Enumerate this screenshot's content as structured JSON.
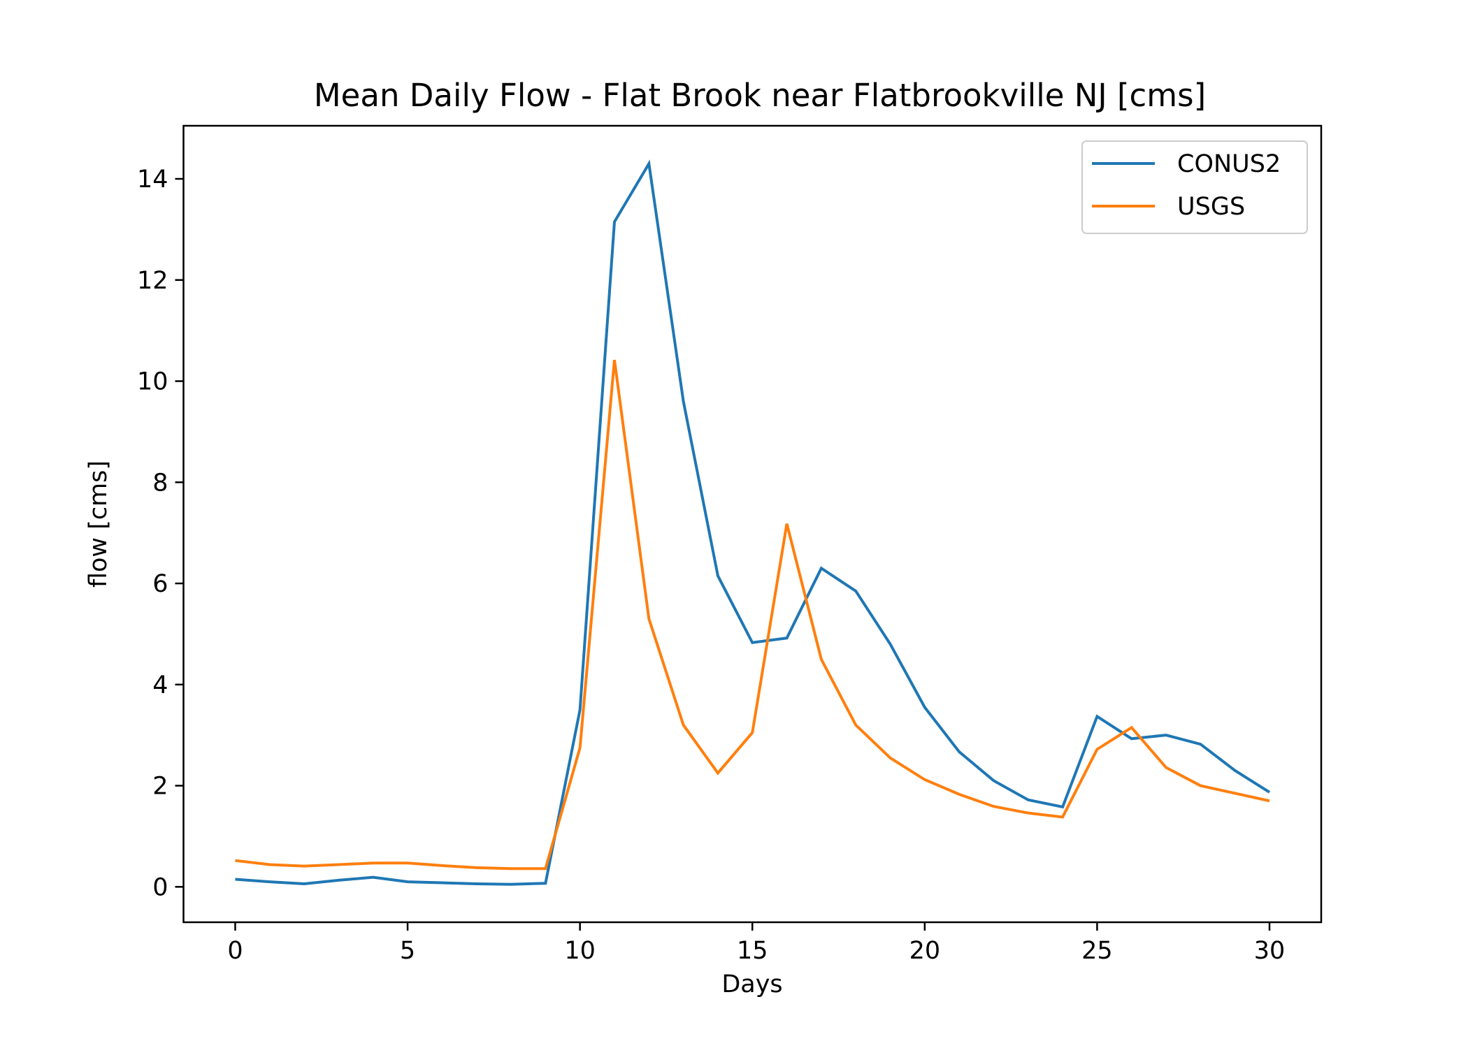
{
  "chart_data": {
    "type": "line",
    "title": "Mean Daily Flow - Flat Brook near Flatbrookville NJ [cms]",
    "xlabel": "Days",
    "ylabel": "flow [cms]",
    "xlim": [
      -1.5,
      31.5
    ],
    "ylim": [
      -0.7,
      15.05
    ],
    "xticks": [
      0,
      5,
      10,
      15,
      20,
      25,
      30
    ],
    "yticks": [
      0,
      2,
      4,
      6,
      8,
      10,
      12,
      14
    ],
    "grid": false,
    "legend_position": "top-right",
    "x": [
      0,
      1,
      2,
      3,
      4,
      5,
      6,
      7,
      8,
      9,
      10,
      11,
      12,
      13,
      14,
      15,
      16,
      17,
      18,
      19,
      20,
      21,
      22,
      23,
      24,
      25,
      26,
      27,
      28,
      29,
      30
    ],
    "series": [
      {
        "name": "CONUS2",
        "color": "#1f77b4",
        "values": [
          0.15,
          0.1,
          0.06,
          0.13,
          0.19,
          0.1,
          0.08,
          0.06,
          0.05,
          0.07,
          3.5,
          13.15,
          14.3,
          9.6,
          6.15,
          4.83,
          4.92,
          6.3,
          5.85,
          4.8,
          3.55,
          2.67,
          2.1,
          1.72,
          1.58,
          3.37,
          2.93,
          3.0,
          2.82,
          2.3,
          1.87
        ]
      },
      {
        "name": "USGS",
        "color": "#ff7f0e",
        "values": [
          0.52,
          0.44,
          0.41,
          0.44,
          0.47,
          0.47,
          0.42,
          0.38,
          0.36,
          0.36,
          2.75,
          10.42,
          5.3,
          3.2,
          2.25,
          3.05,
          7.18,
          4.5,
          3.2,
          2.55,
          2.12,
          1.83,
          1.59,
          1.46,
          1.38,
          2.72,
          3.15,
          2.36,
          2.0,
          1.85,
          1.7
        ]
      }
    ]
  }
}
